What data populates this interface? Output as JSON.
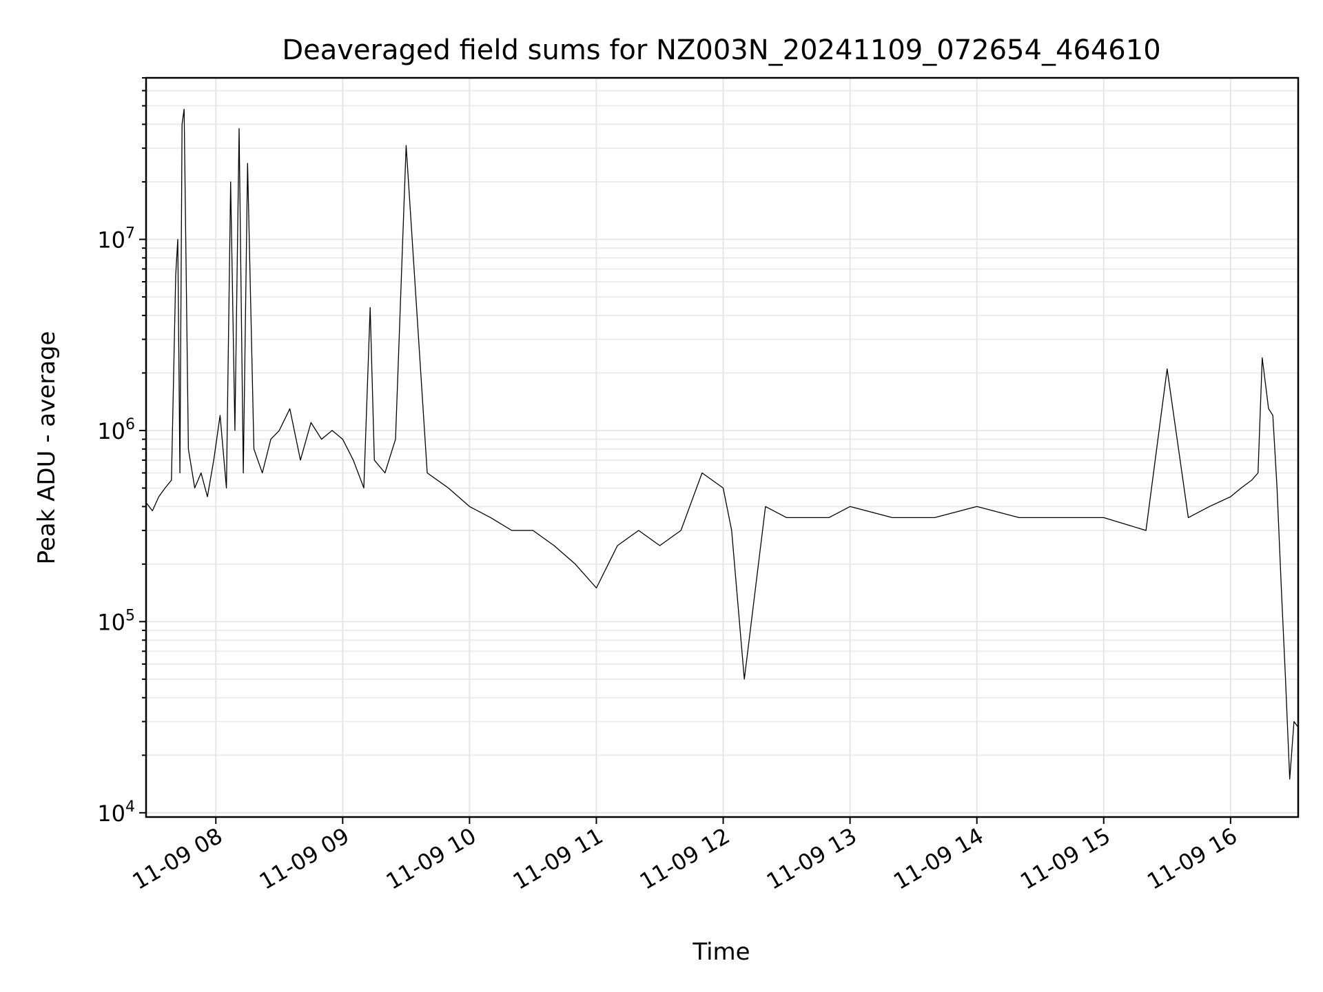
{
  "chart_data": {
    "type": "line",
    "title": "Deaveraged field sums for NZ003N_20241109_072654_464610",
    "xlabel": "Time",
    "ylabel": "Peak ADU - average",
    "yscale": "log",
    "ylim": [
      9500,
      70000000
    ],
    "xlim": [
      "2024-11-09 07:27",
      "2024-11-09 16:32"
    ],
    "grid": "on, major and minor",
    "legend": "none",
    "line_color": "#000000",
    "x_tick_labels": [
      "11-09 08",
      "11-09 09",
      "11-09 10",
      "11-09 11",
      "11-09 12",
      "11-09 13",
      "11-09 14",
      "11-09 15",
      "11-09 16"
    ],
    "x_ticks": [
      "2024-11-09 08:00",
      "2024-11-09 09:00",
      "2024-11-09 10:00",
      "2024-11-09 11:00",
      "2024-11-09 12:00",
      "2024-11-09 13:00",
      "2024-11-09 14:00",
      "2024-11-09 15:00",
      "2024-11-09 16:00"
    ],
    "y_ticks": [
      {
        "value": 10000,
        "base": "10",
        "exp": "4"
      },
      {
        "value": 100000,
        "base": "10",
        "exp": "5"
      },
      {
        "value": 1000000,
        "base": "10",
        "exp": "6"
      },
      {
        "value": 10000000,
        "base": "10",
        "exp": "7"
      }
    ],
    "series": [
      {
        "x": [
          "2024-11-09 07:27",
          "2024-11-09 07:30",
          "2024-11-09 07:33",
          "2024-11-09 07:36",
          "2024-11-09 07:39",
          "2024-11-09 07:41",
          "2024-11-09 07:42",
          "2024-11-09 07:43",
          "2024-11-09 07:44",
          "2024-11-09 07:45",
          "2024-11-09 07:47",
          "2024-11-09 07:50",
          "2024-11-09 07:53",
          "2024-11-09 07:56",
          "2024-11-09 07:59",
          "2024-11-09 08:02",
          "2024-11-09 08:05",
          "2024-11-09 08:07",
          "2024-11-09 08:09",
          "2024-11-09 08:11",
          "2024-11-09 08:13",
          "2024-11-09 08:15",
          "2024-11-09 08:18",
          "2024-11-09 08:22",
          "2024-11-09 08:26",
          "2024-11-09 08:30",
          "2024-11-09 08:35",
          "2024-11-09 08:40",
          "2024-11-09 08:45",
          "2024-11-09 08:50",
          "2024-11-09 08:55",
          "2024-11-09 09:00",
          "2024-11-09 09:05",
          "2024-11-09 09:10",
          "2024-11-09 09:13",
          "2024-11-09 09:15",
          "2024-11-09 09:20",
          "2024-11-09 09:25",
          "2024-11-09 09:30",
          "2024-11-09 09:40",
          "2024-11-09 09:50",
          "2024-11-09 10:00",
          "2024-11-09 10:10",
          "2024-11-09 10:20",
          "2024-11-09 10:30",
          "2024-11-09 10:40",
          "2024-11-09 10:50",
          "2024-11-09 11:00",
          "2024-11-09 11:10",
          "2024-11-09 11:20",
          "2024-11-09 11:30",
          "2024-11-09 11:40",
          "2024-11-09 11:50",
          "2024-11-09 12:00",
          "2024-11-09 12:04",
          "2024-11-09 12:10",
          "2024-11-09 12:20",
          "2024-11-09 12:30",
          "2024-11-09 12:40",
          "2024-11-09 12:50",
          "2024-11-09 13:00",
          "2024-11-09 13:20",
          "2024-11-09 13:40",
          "2024-11-09 14:00",
          "2024-11-09 14:20",
          "2024-11-09 14:40",
          "2024-11-09 15:00",
          "2024-11-09 15:20",
          "2024-11-09 15:30",
          "2024-11-09 15:40",
          "2024-11-09 15:50",
          "2024-11-09 16:00",
          "2024-11-09 16:05",
          "2024-11-09 16:10",
          "2024-11-09 16:13",
          "2024-11-09 16:15",
          "2024-11-09 16:18",
          "2024-11-09 16:20",
          "2024-11-09 16:22",
          "2024-11-09 16:24",
          "2024-11-09 16:26",
          "2024-11-09 16:28",
          "2024-11-09 16:30",
          "2024-11-09 16:32"
        ],
        "values": [
          420000,
          380000,
          450000,
          500000,
          550000,
          6500000,
          10000000,
          600000,
          40000000,
          48000000,
          800000,
          500000,
          600000,
          450000,
          700000,
          1200000,
          500000,
          20000000,
          1000000,
          38000000,
          600000,
          25000000,
          800000,
          600000,
          900000,
          1000000,
          1300000,
          700000,
          1100000,
          900000,
          1000000,
          900000,
          700000,
          500000,
          4400000,
          700000,
          600000,
          900000,
          31000000,
          600000,
          500000,
          400000,
          350000,
          300000,
          300000,
          250000,
          200000,
          150000,
          250000,
          300000,
          250000,
          300000,
          600000,
          500000,
          300000,
          50000,
          400000,
          350000,
          350000,
          350000,
          400000,
          350000,
          350000,
          400000,
          350000,
          350000,
          350000,
          300000,
          2100000,
          350000,
          400000,
          450000,
          500000,
          550000,
          600000,
          2400000,
          1300000,
          1200000,
          500000,
          150000,
          50000,
          15000,
          30000,
          28000
        ]
      }
    ]
  }
}
